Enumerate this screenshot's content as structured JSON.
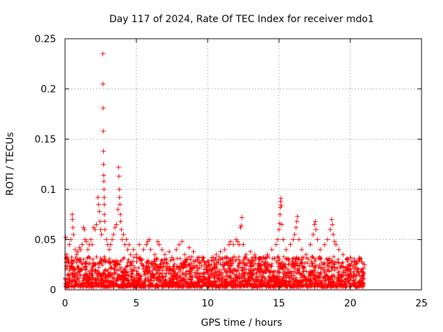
{
  "chart_data": {
    "type": "scatter",
    "title": "Day 117 of 2024, Rate Of TEC Index for receiver mdo1",
    "xlabel": "GPS time / hours",
    "ylabel": "ROTI / TECUs",
    "xlim": [
      0,
      25
    ],
    "ylim": [
      0,
      0.25
    ],
    "xticks": [
      0,
      5,
      10,
      15,
      20,
      25
    ],
    "xtick_labels": [
      "0",
      "5",
      "10",
      "15",
      "20",
      "25"
    ],
    "yticks": [
      0,
      0.05,
      0.1,
      0.15,
      0.2,
      0.25
    ],
    "ytick_labels": [
      "0",
      "0.05",
      "0.1",
      "0.15",
      "0.2",
      "0.25"
    ],
    "grid": true,
    "marker": "+",
    "series": [
      {
        "name": "ROTI",
        "color": "#ff0000",
        "points": [
          [
            0.05,
            0.052
          ],
          [
            0.1,
            0.035
          ],
          [
            0.2,
            0.03
          ],
          [
            0.3,
            0.045
          ],
          [
            0.4,
            0.05
          ],
          [
            0.5,
            0.075
          ],
          [
            0.52,
            0.07
          ],
          [
            0.55,
            0.062
          ],
          [
            0.6,
            0.055
          ],
          [
            0.7,
            0.04
          ],
          [
            0.8,
            0.035
          ],
          [
            0.9,
            0.038
          ],
          [
            1.0,
            0.042
          ],
          [
            1.1,
            0.04
          ],
          [
            1.2,
            0.045
          ],
          [
            1.3,
            0.062
          ],
          [
            1.35,
            0.06
          ],
          [
            1.4,
            0.05
          ],
          [
            1.5,
            0.048
          ],
          [
            1.6,
            0.04
          ],
          [
            1.7,
            0.045
          ],
          [
            1.8,
            0.05
          ],
          [
            1.9,
            0.045
          ],
          [
            2.0,
            0.062
          ],
          [
            2.1,
            0.06
          ],
          [
            2.2,
            0.065
          ],
          [
            2.3,
            0.092
          ],
          [
            2.35,
            0.085
          ],
          [
            2.4,
            0.078
          ],
          [
            2.45,
            0.068
          ],
          [
            2.5,
            0.06
          ],
          [
            2.55,
            0.055
          ],
          [
            2.65,
            0.235
          ],
          [
            2.66,
            0.205
          ],
          [
            2.67,
            0.181
          ],
          [
            2.68,
            0.158
          ],
          [
            2.69,
            0.138
          ],
          [
            2.7,
            0.125
          ],
          [
            2.71,
            0.114
          ],
          [
            2.72,
            0.108
          ],
          [
            2.73,
            0.1
          ],
          [
            2.74,
            0.092
          ],
          [
            2.75,
            0.085
          ],
          [
            2.76,
            0.075
          ],
          [
            2.78,
            0.068
          ],
          [
            2.8,
            0.06
          ],
          [
            2.9,
            0.05
          ],
          [
            3.0,
            0.045
          ],
          [
            3.1,
            0.04
          ],
          [
            3.2,
            0.045
          ],
          [
            3.3,
            0.05
          ],
          [
            3.4,
            0.055
          ],
          [
            3.5,
            0.062
          ],
          [
            3.6,
            0.065
          ],
          [
            3.7,
            0.08
          ],
          [
            3.75,
            0.122
          ],
          [
            3.78,
            0.113
          ],
          [
            3.8,
            0.1
          ],
          [
            3.82,
            0.092
          ],
          [
            3.85,
            0.085
          ],
          [
            3.88,
            0.075
          ],
          [
            3.9,
            0.068
          ],
          [
            3.95,
            0.06
          ],
          [
            4.0,
            0.05
          ],
          [
            4.1,
            0.055
          ],
          [
            4.2,
            0.045
          ],
          [
            4.3,
            0.05
          ],
          [
            4.4,
            0.04
          ],
          [
            4.5,
            0.045
          ],
          [
            4.6,
            0.035
          ],
          [
            4.8,
            0.04
          ],
          [
            5.0,
            0.035
          ],
          [
            5.2,
            0.045
          ],
          [
            5.5,
            0.04
          ],
          [
            5.7,
            0.045
          ],
          [
            5.8,
            0.048
          ],
          [
            5.9,
            0.05
          ],
          [
            6.0,
            0.04
          ],
          [
            6.3,
            0.035
          ],
          [
            6.5,
            0.048
          ],
          [
            6.6,
            0.045
          ],
          [
            6.8,
            0.04
          ],
          [
            7.0,
            0.035
          ],
          [
            7.3,
            0.038
          ],
          [
            7.5,
            0.032
          ],
          [
            7.8,
            0.04
          ],
          [
            8.0,
            0.045
          ],
          [
            8.2,
            0.048
          ],
          [
            8.4,
            0.035
          ],
          [
            8.7,
            0.042
          ],
          [
            9.0,
            0.038
          ],
          [
            9.3,
            0.03
          ],
          [
            9.6,
            0.032
          ],
          [
            10.0,
            0.028
          ],
          [
            10.3,
            0.032
          ],
          [
            10.6,
            0.035
          ],
          [
            10.9,
            0.038
          ],
          [
            11.2,
            0.04
          ],
          [
            11.5,
            0.045
          ],
          [
            11.6,
            0.048
          ],
          [
            11.8,
            0.045
          ],
          [
            12.0,
            0.05
          ],
          [
            12.1,
            0.048
          ],
          [
            12.2,
            0.045
          ],
          [
            12.3,
            0.062
          ],
          [
            12.35,
            0.064
          ],
          [
            12.4,
            0.072
          ],
          [
            12.5,
            0.045
          ],
          [
            12.7,
            0.035
          ],
          [
            13.0,
            0.038
          ],
          [
            13.3,
            0.035
          ],
          [
            13.6,
            0.03
          ],
          [
            13.9,
            0.032
          ],
          [
            14.2,
            0.035
          ],
          [
            14.5,
            0.04
          ],
          [
            14.8,
            0.045
          ],
          [
            14.9,
            0.05
          ],
          [
            15.0,
            0.06
          ],
          [
            15.05,
            0.066
          ],
          [
            15.08,
            0.075
          ],
          [
            15.1,
            0.082
          ],
          [
            15.12,
            0.088
          ],
          [
            15.14,
            0.091
          ],
          [
            15.16,
            0.084
          ],
          [
            15.2,
            0.065
          ],
          [
            15.3,
            0.05
          ],
          [
            15.5,
            0.04
          ],
          [
            15.8,
            0.045
          ],
          [
            16.0,
            0.05
          ],
          [
            16.1,
            0.055
          ],
          [
            16.2,
            0.062
          ],
          [
            16.25,
            0.068
          ],
          [
            16.3,
            0.073
          ],
          [
            16.4,
            0.05
          ],
          [
            16.6,
            0.04
          ],
          [
            16.9,
            0.035
          ],
          [
            17.2,
            0.045
          ],
          [
            17.4,
            0.055
          ],
          [
            17.5,
            0.065
          ],
          [
            17.55,
            0.068
          ],
          [
            17.6,
            0.06
          ],
          [
            17.7,
            0.05
          ],
          [
            17.9,
            0.04
          ],
          [
            18.2,
            0.045
          ],
          [
            18.4,
            0.05
          ],
          [
            18.6,
            0.06
          ],
          [
            18.7,
            0.07
          ],
          [
            18.75,
            0.065
          ],
          [
            18.8,
            0.055
          ],
          [
            18.9,
            0.048
          ],
          [
            19.0,
            0.045
          ],
          [
            19.2,
            0.04
          ],
          [
            19.5,
            0.035
          ],
          [
            19.8,
            0.03
          ],
          [
            20.0,
            0.032
          ],
          [
            20.3,
            0.028
          ],
          [
            20.6,
            0.03
          ],
          [
            20.8,
            0.028
          ],
          [
            21.0,
            0.025
          ]
        ]
      }
    ]
  }
}
